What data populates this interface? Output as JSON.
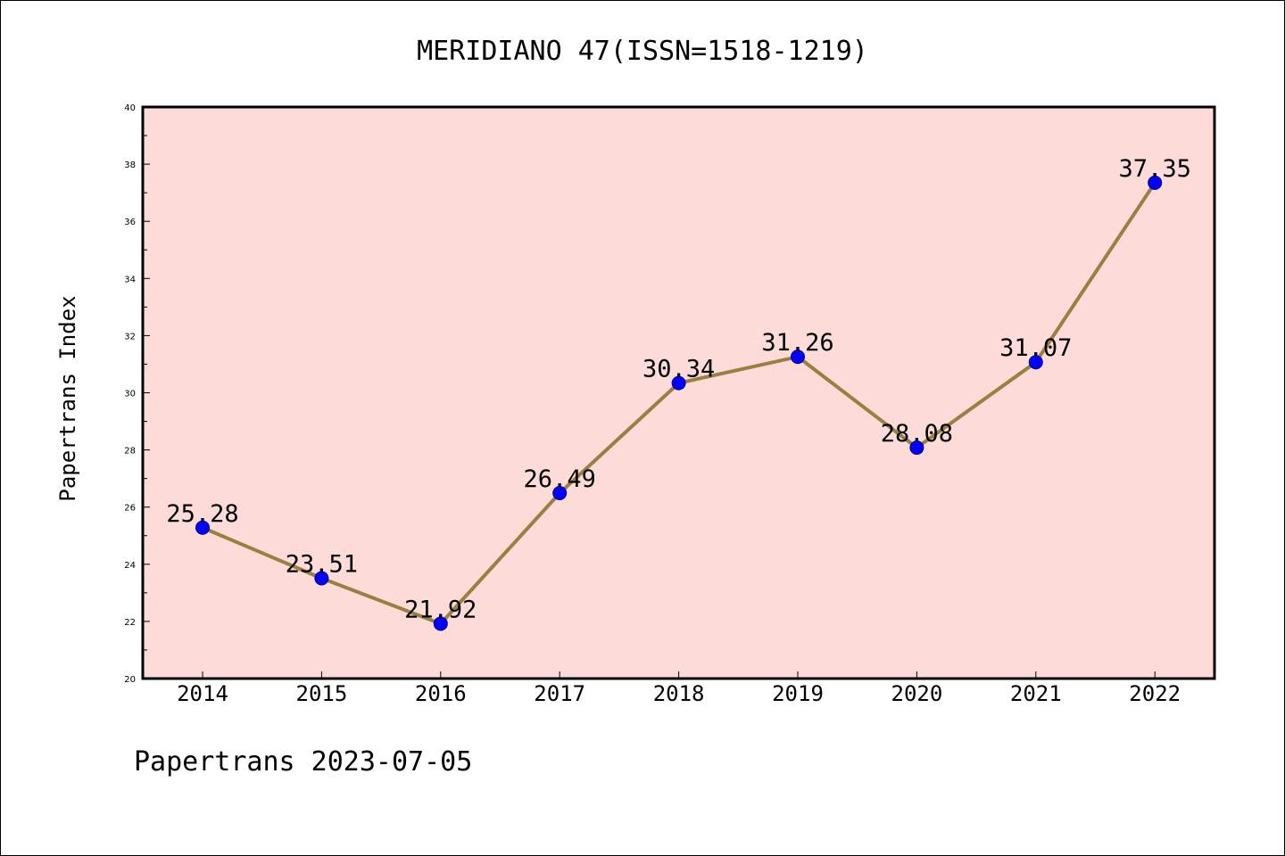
{
  "chart_data": {
    "type": "line",
    "title": "MERIDIANO 47(ISSN=1518-1219)",
    "xlabel": "",
    "ylabel": "Papertrans Index",
    "footer": "Papertrans 2023-07-05",
    "categories": [
      "2014",
      "2015",
      "2016",
      "2017",
      "2018",
      "2019",
      "2020",
      "2021",
      "2022"
    ],
    "series": [
      {
        "values": [
          25.28,
          23.51,
          21.92,
          26.49,
          30.34,
          31.26,
          28.08,
          31.07,
          37.35
        ],
        "labels": [
          "25.28",
          "23.51",
          "21.92",
          "26.49",
          "30.34",
          "31.26",
          "28.08",
          "31.07",
          "37.35"
        ]
      }
    ],
    "ylim": [
      20,
      40
    ],
    "yticks": [
      "20",
      "22",
      "24",
      "26",
      "28",
      "30",
      "32",
      "34",
      "36",
      "38",
      "40"
    ],
    "grid": false,
    "colors": {
      "plot_background": "#fddbd9",
      "line": "#9a8040",
      "marker": "#0000ff"
    }
  }
}
